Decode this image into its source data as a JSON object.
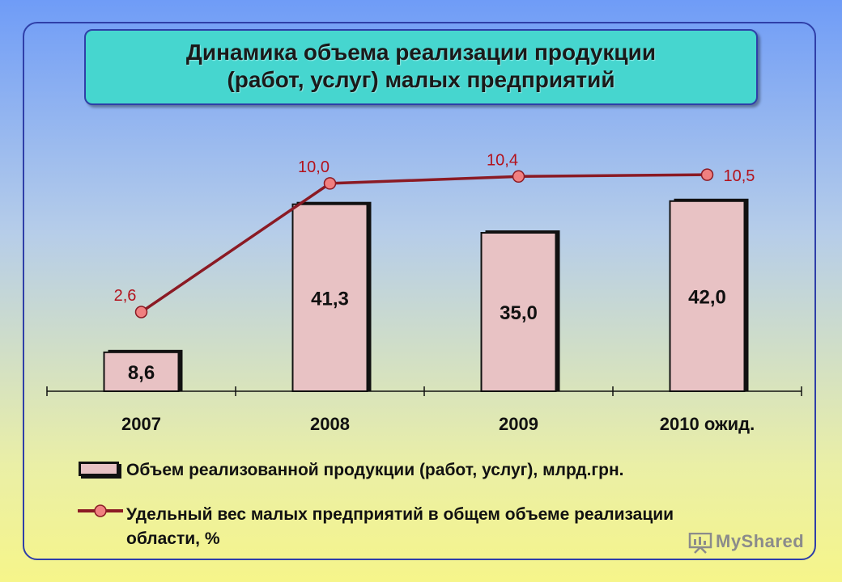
{
  "title": {
    "line1": "Динамика объема реализации продукции",
    "line2": "(работ, услуг) малых предприятий"
  },
  "chart_data": {
    "type": "bar",
    "categories": [
      "2007",
      "2008",
      "2009",
      "2010 ожид."
    ],
    "series": [
      {
        "name": "Объем реализованной продукции (работ, услуг), млрд.грн.",
        "type": "bar",
        "values": [
          8.6,
          41.3,
          35.0,
          42.0
        ],
        "labels": [
          "8,6",
          "41,3",
          "35,0",
          "42,0"
        ],
        "color": "#e8c2c4"
      },
      {
        "name": "Удельный вес малых предприятий в общем объеме реализации области, %",
        "type": "line",
        "values": [
          2.6,
          10.0,
          10.4,
          10.5
        ],
        "labels": [
          "2,6",
          "10,0",
          "10,4",
          "10,5"
        ],
        "color": "#8b1a24",
        "marker_color": "#f08080"
      }
    ],
    "title": "Динамика объема реализации продукции (работ, услуг) малых предприятий",
    "xlabel": "",
    "ylabel": "",
    "grid": false,
    "legend": "bottom"
  },
  "legend": {
    "bar_label": "Объем реализованной продукции (работ, услуг), млрд.грн.",
    "line_label_1": "Удельный вес малых предприятий в общем объеме реализации",
    "line_label_2": "области,  %"
  },
  "watermark": {
    "text": "MyShared",
    "icon": "presentation-board-icon"
  }
}
